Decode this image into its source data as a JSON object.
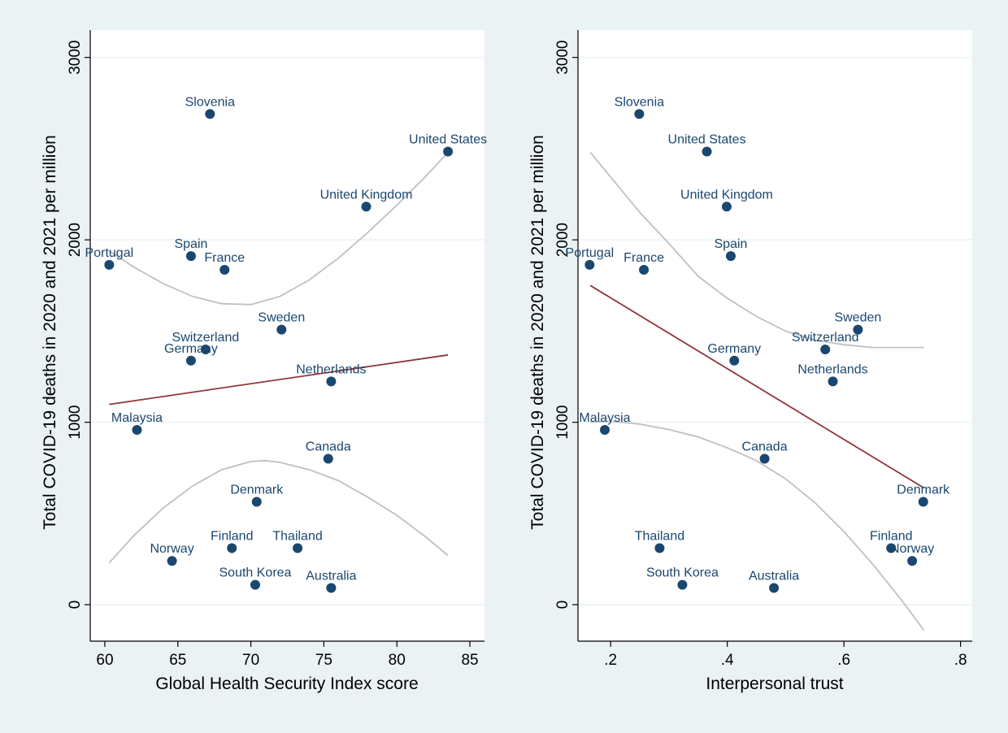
{
  "colors": {
    "background": "#eaf2f3",
    "marker": "#1a476f",
    "fit_line": "#90353b",
    "ci_line": "#c0c0c0",
    "grid": "#eaf2f3"
  },
  "chart_data": [
    {
      "type": "scatter",
      "xlabel": "Global Health Security Index score",
      "ylabel": "Total COVID-19 deaths in 2020 and 2021 per million",
      "xlim": [
        59,
        86
      ],
      "ylim": [
        -200,
        3150
      ],
      "xticks": [
        {
          "v": 60,
          "label": "60"
        },
        {
          "v": 65,
          "label": "65"
        },
        {
          "v": 70,
          "label": "70"
        },
        {
          "v": 75,
          "label": "75"
        },
        {
          "v": 80,
          "label": "80"
        },
        {
          "v": 85,
          "label": "85"
        }
      ],
      "yticks": [
        {
          "v": 0,
          "label": "0"
        },
        {
          "v": 1000,
          "label": "1000"
        },
        {
          "v": 2000,
          "label": "2000"
        },
        {
          "v": 3000,
          "label": "3000"
        }
      ],
      "grid": true,
      "points": [
        {
          "label": "Slovenia",
          "x": 67.2,
          "y": 2690
        },
        {
          "label": "United States",
          "x": 83.5,
          "y": 2484
        },
        {
          "label": "United Kingdom",
          "x": 77.9,
          "y": 2182
        },
        {
          "label": "Spain",
          "x": 65.9,
          "y": 1911
        },
        {
          "label": "Portugal",
          "x": 60.3,
          "y": 1863
        },
        {
          "label": "France",
          "x": 68.2,
          "y": 1836
        },
        {
          "label": "Sweden",
          "x": 72.1,
          "y": 1508
        },
        {
          "label": "Switzerland",
          "x": 66.9,
          "y": 1399
        },
        {
          "label": "Germany",
          "x": 65.9,
          "y": 1338
        },
        {
          "label": "Netherlands",
          "x": 75.5,
          "y": 1224
        },
        {
          "label": "Malaysia",
          "x": 62.2,
          "y": 958
        },
        {
          "label": "Canada",
          "x": 75.3,
          "y": 800
        },
        {
          "label": "Denmark",
          "x": 70.4,
          "y": 564
        },
        {
          "label": "Finland",
          "x": 68.7,
          "y": 310
        },
        {
          "label": "Thailand",
          "x": 73.2,
          "y": 310
        },
        {
          "label": "Norway",
          "x": 64.6,
          "y": 240
        },
        {
          "label": "South Korea",
          "x": 70.3,
          "y": 109
        },
        {
          "label": "Australia",
          "x": 75.5,
          "y": 92
        }
      ],
      "fit_line": [
        [
          60.3,
          1098
        ],
        [
          83.5,
          1369
        ]
      ],
      "ci_upper": [
        [
          60.3,
          1940
        ],
        [
          62,
          1850
        ],
        [
          64,
          1760
        ],
        [
          66,
          1690
        ],
        [
          68,
          1650
        ],
        [
          70,
          1645
        ],
        [
          72,
          1690
        ],
        [
          74,
          1780
        ],
        [
          76,
          1900
        ],
        [
          78,
          2040
        ],
        [
          80,
          2190
        ],
        [
          82,
          2350
        ],
        [
          83.5,
          2480
        ]
      ],
      "ci_lower": [
        [
          60.3,
          230
        ],
        [
          62,
          380
        ],
        [
          64,
          530
        ],
        [
          66,
          650
        ],
        [
          68,
          740
        ],
        [
          70,
          785
        ],
        [
          71,
          790
        ],
        [
          72,
          780
        ],
        [
          74,
          740
        ],
        [
          76,
          680
        ],
        [
          78,
          590
        ],
        [
          80,
          490
        ],
        [
          82,
          370
        ],
        [
          83.5,
          270
        ]
      ]
    },
    {
      "type": "scatter",
      "xlabel": "Interpersonal trust",
      "ylabel": "Total COVID-19 deaths in 2020 and 2021 per million",
      "xlim": [
        0.144,
        0.82
      ],
      "ylim": [
        -200,
        3150
      ],
      "xticks": [
        {
          "v": 0.2,
          "label": ".2"
        },
        {
          "v": 0.4,
          "label": ".4"
        },
        {
          "v": 0.6,
          "label": ".6"
        },
        {
          "v": 0.8,
          "label": ".8"
        }
      ],
      "yticks": [
        {
          "v": 0,
          "label": "0"
        },
        {
          "v": 1000,
          "label": "1000"
        },
        {
          "v": 2000,
          "label": "2000"
        },
        {
          "v": 3000,
          "label": "3000"
        }
      ],
      "grid": true,
      "points": [
        {
          "label": "Slovenia",
          "x": 0.249,
          "y": 2690
        },
        {
          "label": "United States",
          "x": 0.365,
          "y": 2484
        },
        {
          "label": "United Kingdom",
          "x": 0.399,
          "y": 2182
        },
        {
          "label": "Spain",
          "x": 0.406,
          "y": 1911
        },
        {
          "label": "Portugal",
          "x": 0.164,
          "y": 1863
        },
        {
          "label": "France",
          "x": 0.257,
          "y": 1836
        },
        {
          "label": "Sweden",
          "x": 0.624,
          "y": 1508
        },
        {
          "label": "Switzerland",
          "x": 0.568,
          "y": 1399
        },
        {
          "label": "Germany",
          "x": 0.412,
          "y": 1338
        },
        {
          "label": "Netherlands",
          "x": 0.581,
          "y": 1224
        },
        {
          "label": "Malaysia",
          "x": 0.19,
          "y": 958
        },
        {
          "label": "Canada",
          "x": 0.464,
          "y": 800
        },
        {
          "label": "Denmark",
          "x": 0.736,
          "y": 564
        },
        {
          "label": "Finland",
          "x": 0.681,
          "y": 310
        },
        {
          "label": "Thailand",
          "x": 0.284,
          "y": 310
        },
        {
          "label": "Norway",
          "x": 0.717,
          "y": 240
        },
        {
          "label": "South Korea",
          "x": 0.323,
          "y": 109
        },
        {
          "label": "Australia",
          "x": 0.48,
          "y": 92
        }
      ],
      "fit_line": [
        [
          0.165,
          1750
        ],
        [
          0.737,
          640
        ]
      ],
      "ci_upper": [
        [
          0.165,
          2480
        ],
        [
          0.25,
          2150
        ],
        [
          0.3,
          1980
        ],
        [
          0.35,
          1800
        ],
        [
          0.4,
          1680
        ],
        [
          0.45,
          1580
        ],
        [
          0.5,
          1500
        ],
        [
          0.55,
          1450
        ],
        [
          0.6,
          1425
        ],
        [
          0.65,
          1410
        ],
        [
          0.737,
          1410
        ]
      ],
      "ci_lower": [
        [
          0.165,
          1000
        ],
        [
          0.2,
          1005
        ],
        [
          0.25,
          990
        ],
        [
          0.3,
          960
        ],
        [
          0.35,
          920
        ],
        [
          0.4,
          860
        ],
        [
          0.45,
          790
        ],
        [
          0.5,
          690
        ],
        [
          0.55,
          560
        ],
        [
          0.6,
          400
        ],
        [
          0.65,
          220
        ],
        [
          0.7,
          20
        ],
        [
          0.737,
          -140
        ]
      ]
    }
  ]
}
